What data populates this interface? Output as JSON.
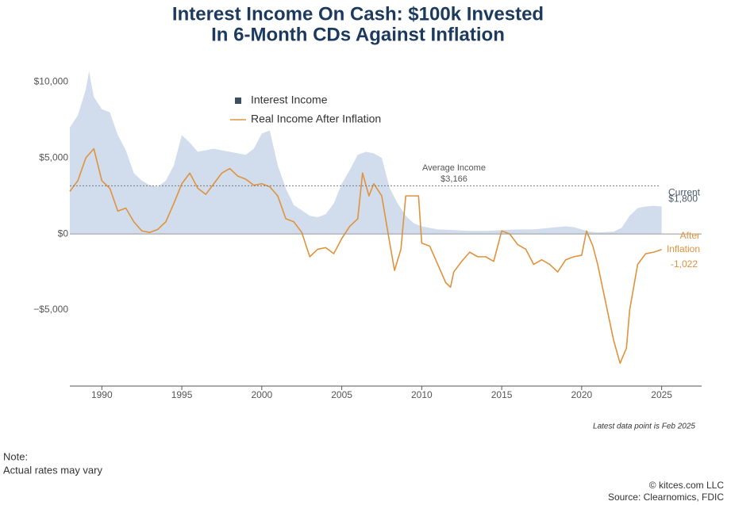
{
  "chart_data": {
    "type": "line",
    "title": [
      "Interest Income On Cash: $100k Invested",
      "In 6-Month CDs Against Inflation"
    ],
    "xlim": [
      1988,
      2027.5
    ],
    "xticks": [
      1990,
      1995,
      2000,
      2005,
      2010,
      2015,
      2020,
      2025
    ],
    "ylim": [
      -10000,
      11000
    ],
    "yticks": [
      {
        "value": -5000,
        "label": "−$5,000"
      },
      {
        "value": 0,
        "label": "$0"
      },
      {
        "value": 5000,
        "label": "$5,000"
      },
      {
        "value": 10000,
        "label": "$10,000"
      }
    ],
    "zero_line": true,
    "series": [
      {
        "name": "Interest Income",
        "color": "#c9d6ea",
        "legend_color": "#3d4f63",
        "fill": true,
        "x": [
          1988,
          1988.5,
          1989,
          1989.2,
          1989.5,
          1990,
          1990.5,
          1991,
          1991.5,
          1992,
          1992.5,
          1993,
          1993.5,
          1994,
          1994.5,
          1995,
          1995.5,
          1996,
          1997,
          1998,
          1999,
          1999.5,
          2000,
          2000.5,
          2001,
          2001.5,
          2002,
          2003,
          2003.5,
          2004,
          2004.5,
          2005,
          2005.5,
          2006,
          2006.5,
          2007,
          2007.5,
          2008,
          2008.5,
          2009,
          2009.5,
          2010,
          2011,
          2012,
          2013,
          2014,
          2015,
          2016,
          2017,
          2018,
          2019,
          2019.5,
          2020,
          2020.5,
          2021,
          2022,
          2022.5,
          2023,
          2023.5,
          2024,
          2024.5,
          2025
        ],
        "values": [
          7000,
          7800,
          9500,
          10700,
          9000,
          8200,
          8000,
          6500,
          5500,
          4000,
          3500,
          3200,
          3100,
          3500,
          4500,
          6500,
          6000,
          5400,
          5600,
          5400,
          5200,
          5600,
          6600,
          6800,
          4500,
          3000,
          1900,
          1200,
          1100,
          1300,
          2000,
          3300,
          4200,
          5200,
          5400,
          5300,
          5000,
          3000,
          2000,
          1200,
          700,
          500,
          300,
          250,
          200,
          200,
          250,
          300,
          300,
          400,
          500,
          450,
          300,
          150,
          100,
          150,
          400,
          1200,
          1700,
          1800,
          1850,
          1800
        ]
      },
      {
        "name": "Real Income After Inflation",
        "color": "#e0933c",
        "fill": false,
        "x": [
          1988,
          1988.5,
          1989,
          1989.5,
          1990,
          1990.5,
          1991,
          1991.5,
          1992,
          1992.5,
          1993,
          1993.5,
          1994,
          1994.5,
          1995,
          1995.5,
          1996,
          1996.5,
          1997,
          1997.5,
          1998,
          1998.5,
          1999,
          1999.5,
          2000,
          2000.5,
          2001,
          2001.5,
          2002,
          2002.5,
          2003,
          2003.5,
          2004,
          2004.5,
          2005,
          2005.5,
          2006,
          2006.3,
          2006.7,
          2007,
          2007.5,
          2008,
          2008.3,
          2008.7,
          2009,
          2009.5,
          2009.8,
          2010,
          2010.5,
          2011,
          2011.5,
          2011.8,
          2012,
          2012.5,
          2013,
          2013.5,
          2014,
          2014.5,
          2015,
          2015.5,
          2016,
          2016.5,
          2017,
          2017.5,
          2018,
          2018.5,
          2019,
          2019.5,
          2020,
          2020.3,
          2020.7,
          2021,
          2021.5,
          2022,
          2022.4,
          2022.8,
          2023,
          2023.5,
          2024,
          2024.5,
          2025
        ],
        "values": [
          2800,
          3500,
          5000,
          5600,
          3500,
          3000,
          1500,
          1700,
          800,
          200,
          100,
          300,
          800,
          2000,
          3300,
          4000,
          3000,
          2600,
          3300,
          4000,
          4300,
          3800,
          3600,
          3200,
          3300,
          3100,
          2500,
          1000,
          800,
          100,
          -1500,
          -1000,
          -900,
          -1300,
          -300,
          500,
          1000,
          4000,
          2500,
          3300,
          2500,
          -600,
          -2400,
          -1000,
          2500,
          2500,
          2500,
          -600,
          -800,
          -2000,
          -3200,
          -3500,
          -2500,
          -1800,
          -1200,
          -1500,
          -1500,
          -1800,
          200,
          0,
          -700,
          -1000,
          -2000,
          -1700,
          -2000,
          -2500,
          -1700,
          -1500,
          -1400,
          200,
          -800,
          -2000,
          -4500,
          -7000,
          -8500,
          -7500,
          -5000,
          -2000,
          -1300,
          -1200,
          -1022
        ]
      }
    ],
    "average_line": {
      "value": 3166,
      "label": "Average Income",
      "value_label": "$3,166"
    },
    "annotations": [
      {
        "text": "Current",
        "value": 1800,
        "value_label": "$1,800",
        "color": "#4a5a6e"
      },
      {
        "text": [
          "After",
          "Inflation"
        ],
        "value": -1022,
        "value_label": "-1,022",
        "color": "#e0933c"
      }
    ],
    "footnote": "Latest data point is Feb 2025"
  },
  "note": {
    "heading": "Note:",
    "text": "Actual rates may vary"
  },
  "credits": [
    "© kitces.com LLC",
    "Source: Clearnomics, FDIC"
  ]
}
